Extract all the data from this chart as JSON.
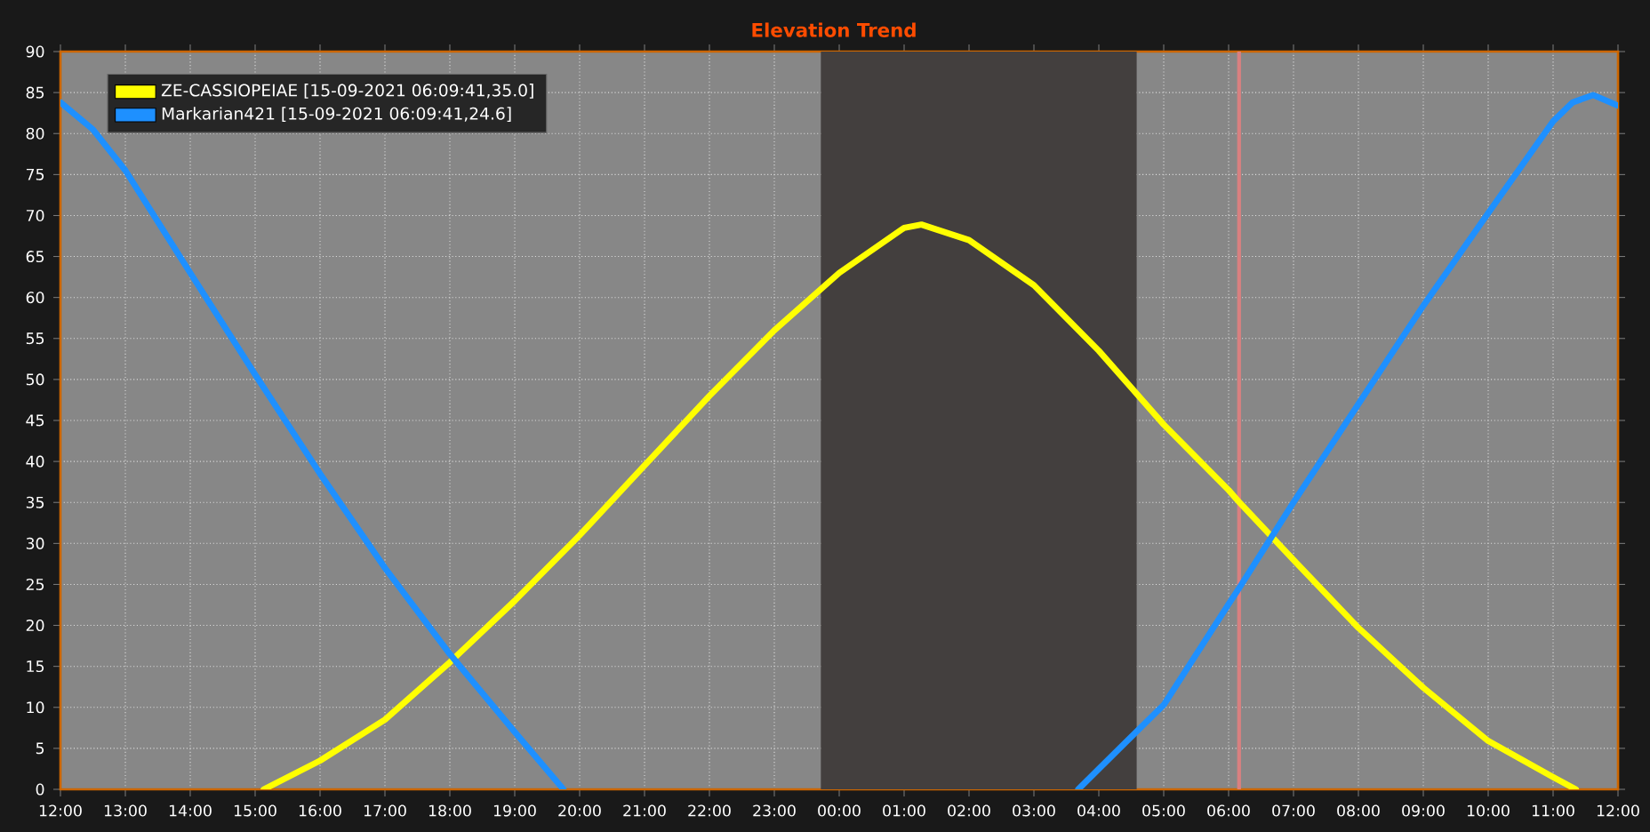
{
  "chart_data": {
    "type": "line",
    "title": "Elevation Trend",
    "series": [
      {
        "name": "ZE-CASSIOPEIAE [15-09-2021 06:09:41,35.0]",
        "color": "#ffff00",
        "x": [
          "2021-09-14T15:08",
          "2021-09-14T16:00",
          "2021-09-14T17:00",
          "2021-09-14T18:00",
          "2021-09-14T19:00",
          "2021-09-14T20:00",
          "2021-09-14T21:00",
          "2021-09-14T22:00",
          "2021-09-14T23:00",
          "2021-09-15T00:00",
          "2021-09-15T01:00",
          "2021-09-15T01:16",
          "2021-09-15T02:00",
          "2021-09-15T03:00",
          "2021-09-15T04:00",
          "2021-09-15T05:00",
          "2021-09-15T06:00",
          "2021-09-15T06:10",
          "2021-09-15T07:00",
          "2021-09-15T08:00",
          "2021-09-15T09:00",
          "2021-09-15T10:00",
          "2021-09-15T11:00",
          "2021-09-15T11:21"
        ],
        "values": [
          0,
          3.5,
          8.5,
          15.5,
          23,
          31,
          39.5,
          48,
          56,
          63,
          68.5,
          68.9,
          67,
          61.5,
          53.5,
          44.5,
          36.5,
          35.0,
          28,
          19.7,
          12.4,
          5.9,
          1.5,
          0
        ]
      },
      {
        "name": "Markarian421 [15-09-2021 06:09:41,24.6]",
        "color": "#1e90ff",
        "x": [
          "2021-09-14T12:00",
          "2021-09-14T12:30",
          "2021-09-14T13:00",
          "2021-09-14T14:00",
          "2021-09-14T15:00",
          "2021-09-14T16:00",
          "2021-09-14T17:00",
          "2021-09-14T18:00",
          "2021-09-14T19:00",
          "2021-09-14T19:45",
          "2021-09-15T00:00",
          "2021-09-15T03:41",
          "2021-09-15T04:00",
          "2021-09-15T05:00",
          "2021-09-15T06:00",
          "2021-09-15T06:10",
          "2021-09-15T07:00",
          "2021-09-15T08:00",
          "2021-09-15T09:00",
          "2021-09-15T10:00",
          "2021-09-15T11:00",
          "2021-09-15T11:18",
          "2021-09-15T11:37",
          "2021-09-15T12:00"
        ],
        "values": [
          83.8,
          80.5,
          75.5,
          63,
          50.6,
          38.5,
          27,
          16.5,
          7,
          0,
          null,
          0,
          2.5,
          10.3,
          22.6,
          24.6,
          35,
          47,
          59,
          70.3,
          81.5,
          83.8,
          84.7,
          83.4
        ]
      }
    ],
    "xlim": [
      "2021-09-14T12:00",
      "2021-09-15T12:00"
    ],
    "xticks": [
      {
        "value": "2021-09-14T12:00",
        "label": "12:00"
      },
      {
        "value": "2021-09-14T13:00",
        "label": "13:00"
      },
      {
        "value": "2021-09-14T14:00",
        "label": "14:00"
      },
      {
        "value": "2021-09-14T15:00",
        "label": "15:00"
      },
      {
        "value": "2021-09-14T16:00",
        "label": "16:00"
      },
      {
        "value": "2021-09-14T17:00",
        "label": "17:00"
      },
      {
        "value": "2021-09-14T18:00",
        "label": "18:00"
      },
      {
        "value": "2021-09-14T19:00",
        "label": "19:00"
      },
      {
        "value": "2021-09-14T20:00",
        "label": "20:00"
      },
      {
        "value": "2021-09-14T21:00",
        "label": "21:00"
      },
      {
        "value": "2021-09-14T22:00",
        "label": "22:00"
      },
      {
        "value": "2021-09-14T23:00",
        "label": "23:00"
      },
      {
        "value": "2021-09-15T00:00",
        "label": "00:00"
      },
      {
        "value": "2021-09-15T01:00",
        "label": "01:00"
      },
      {
        "value": "2021-09-15T02:00",
        "label": "02:00"
      },
      {
        "value": "2021-09-15T03:00",
        "label": "03:00"
      },
      {
        "value": "2021-09-15T04:00",
        "label": "04:00"
      },
      {
        "value": "2021-09-15T05:00",
        "label": "05:00"
      },
      {
        "value": "2021-09-15T06:00",
        "label": "06:00"
      },
      {
        "value": "2021-09-15T07:00",
        "label": "07:00"
      },
      {
        "value": "2021-09-15T08:00",
        "label": "08:00"
      },
      {
        "value": "2021-09-15T09:00",
        "label": "09:00"
      },
      {
        "value": "2021-09-15T10:00",
        "label": "10:00"
      },
      {
        "value": "2021-09-15T11:00",
        "label": "11:00"
      },
      {
        "value": "2021-09-15T12:00",
        "label": "12:00"
      }
    ],
    "ylim": [
      0,
      90
    ],
    "yticks": [
      0,
      5,
      10,
      15,
      20,
      25,
      30,
      35,
      40,
      45,
      50,
      55,
      60,
      65,
      70,
      75,
      80,
      85,
      90
    ],
    "bands": [
      {
        "axis": "x",
        "from": "2021-09-14T23:43",
        "to": "2021-09-15T04:35",
        "color": "#433f3e"
      }
    ],
    "ref_lines": [
      {
        "axis": "x",
        "value": "2021-09-15T06:09:41",
        "color": "#d98080"
      }
    ],
    "grid": true,
    "legend": "top left",
    "line_style": "solid",
    "marker": "none"
  }
}
